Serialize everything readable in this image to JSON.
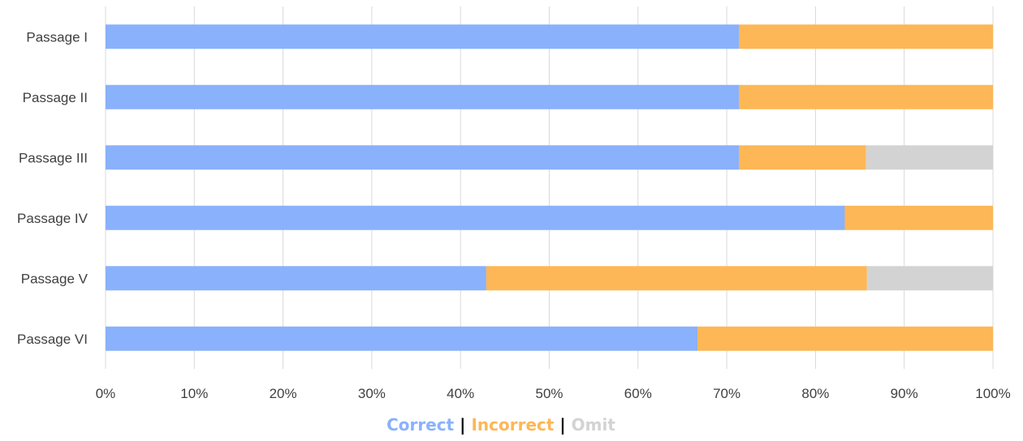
{
  "chart_data": {
    "type": "bar",
    "orientation": "horizontal",
    "stacking": "percent",
    "categories": [
      "Passage I",
      "Passage II",
      "Passage III",
      "Passage IV",
      "Passage V",
      "Passage VI"
    ],
    "series": [
      {
        "name": "Correct",
        "color": "#8AB1FC",
        "values": [
          71.4,
          71.4,
          71.4,
          83.3,
          42.9,
          66.7
        ]
      },
      {
        "name": "Incorrect",
        "color": "#FDB756",
        "values": [
          28.6,
          28.6,
          14.3,
          16.7,
          42.9,
          33.3
        ]
      },
      {
        "name": "Omit",
        "color": "#D3D3D3",
        "values": [
          0,
          0,
          14.3,
          0,
          14.2,
          0
        ]
      }
    ],
    "x_ticks": [
      "0%",
      "10%",
      "20%",
      "30%",
      "40%",
      "50%",
      "60%",
      "70%",
      "80%",
      "90%",
      "100%"
    ],
    "xlim": [
      0,
      100
    ],
    "grid": true,
    "legend_separator": "|",
    "legend_position": "bottom"
  }
}
